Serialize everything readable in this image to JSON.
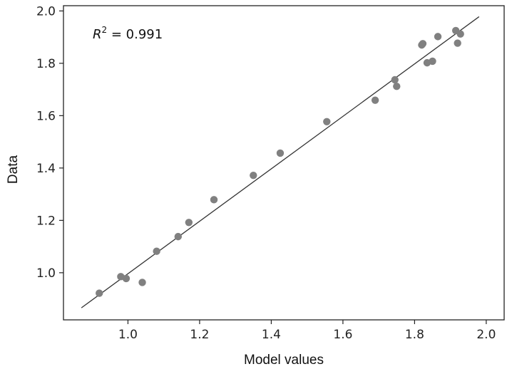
{
  "chart_data": {
    "type": "scatter",
    "title": "",
    "xlabel": "Model values",
    "ylabel": "Data",
    "xlim": [
      0.82,
      2.05
    ],
    "ylim": [
      0.82,
      2.02
    ],
    "x_ticks": [
      1.0,
      1.2,
      1.4,
      1.6,
      1.8,
      2.0
    ],
    "y_ticks": [
      1.0,
      1.2,
      1.4,
      1.6,
      1.8,
      2.0
    ],
    "x_tick_labels": [
      "1.0",
      "1.2",
      "1.4",
      "1.6",
      "1.8",
      "2.0"
    ],
    "y_tick_labels": [
      "1.0",
      "1.2",
      "1.4",
      "1.6",
      "1.8",
      "2.0"
    ],
    "grid": false,
    "point_color": "#808080",
    "line_color": "#333333",
    "annotation": {
      "symbol": "R",
      "exponent": "2",
      "text": " = 0.991"
    },
    "fit_line": {
      "x": [
        0.87,
        1.98
      ],
      "y": [
        0.866,
        1.978
      ]
    },
    "points": {
      "x": [
        0.92,
        0.98,
        0.995,
        1.04,
        1.08,
        1.14,
        1.17,
        1.24,
        1.35,
        1.425,
        1.555,
        1.69,
        1.745,
        1.75,
        1.82,
        1.823,
        1.835,
        1.85,
        1.865,
        1.915,
        1.92,
        1.928
      ],
      "y": [
        0.922,
        0.985,
        0.978,
        0.963,
        1.082,
        1.138,
        1.192,
        1.279,
        1.372,
        1.457,
        1.577,
        1.659,
        1.737,
        1.712,
        1.87,
        1.875,
        1.802,
        1.808,
        1.902,
        1.925,
        1.877,
        1.912
      ]
    }
  }
}
